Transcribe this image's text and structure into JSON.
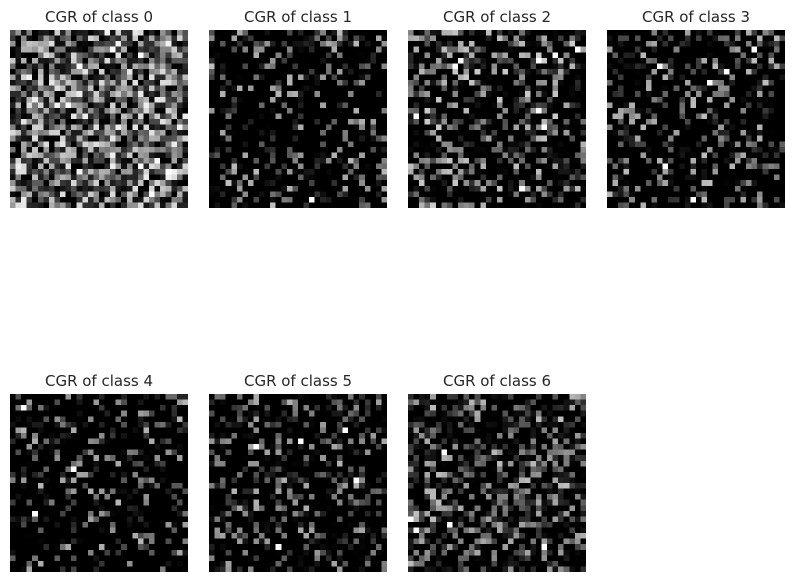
{
  "figure": {
    "panels": [
      {
        "title": "CGR of class 0",
        "seed": 101,
        "density": 0.9,
        "brightness": 0.55
      },
      {
        "title": "CGR of class 1",
        "seed": 202,
        "density": 0.32,
        "brightness": 0.35
      },
      {
        "title": "CGR of class 2",
        "seed": 303,
        "density": 0.5,
        "brightness": 0.4
      },
      {
        "title": "CGR of class 3",
        "seed": 404,
        "density": 0.38,
        "brightness": 0.35
      },
      {
        "title": "CGR of class 4",
        "seed": 505,
        "density": 0.32,
        "brightness": 0.32
      },
      {
        "title": "CGR of class 5",
        "seed": 606,
        "density": 0.42,
        "brightness": 0.3
      },
      {
        "title": "CGR of class 6",
        "seed": 707,
        "density": 0.6,
        "brightness": 0.35
      }
    ],
    "colors": {
      "background": "#ffffff",
      "title": "#262626",
      "colormap": "gray"
    }
  }
}
